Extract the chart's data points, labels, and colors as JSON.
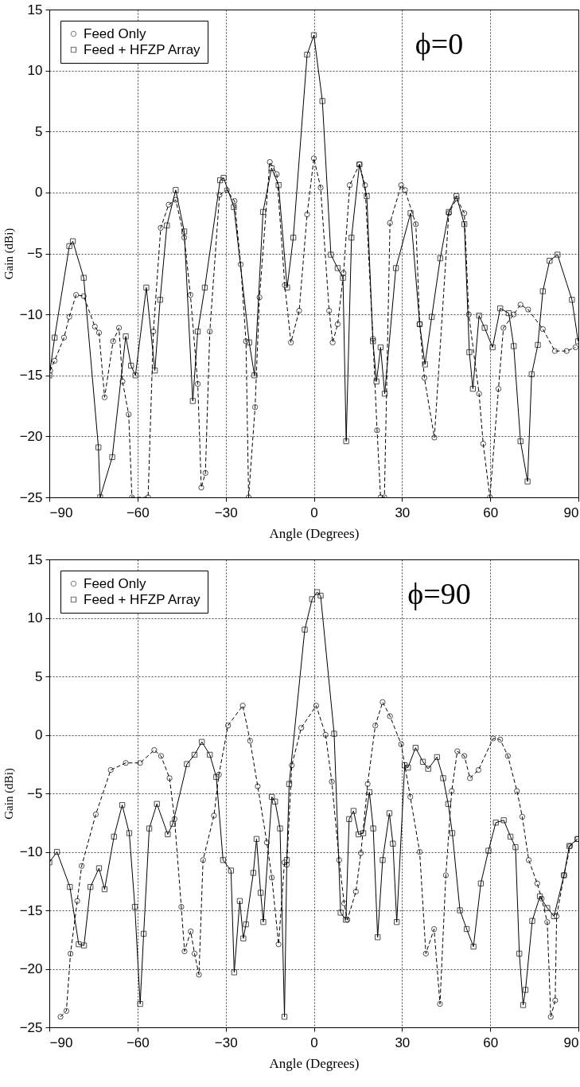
{
  "chart_data": [
    {
      "type": "line",
      "xlabel": "Angle (Degrees)",
      "ylabel": "Gain (dBi)",
      "xlim": [
        -90,
        90
      ],
      "ylim": [
        -25,
        15
      ],
      "xticks": [
        -90,
        -60,
        -30,
        0,
        30,
        60,
        90
      ],
      "yticks": [
        -25,
        -20,
        -15,
        -10,
        -5,
        0,
        5,
        10,
        15
      ],
      "grid": true,
      "legend": "top left",
      "annotations": [
        "ϕ=0"
      ],
      "series": [
        {
          "name": "Feed Only",
          "color": "#000000",
          "marker": "circle",
          "line_style": "dashed",
          "x": [
            -89.7,
            -88.2,
            -85,
            -83.2,
            -80.9,
            -78.3,
            -74.5,
            -73.1,
            -71.2,
            -68.3,
            -66.3,
            -65.1,
            -63,
            -61.9,
            -56.4,
            -54.6,
            -52.1,
            -49.4,
            -47,
            -44.1,
            -42,
            -39.5,
            -38.3,
            -36.9,
            -35.4,
            -32.1,
            -29.6,
            -27,
            -24.9,
            -23.1,
            -22.2,
            -20,
            -18.5,
            -15,
            -12.6,
            -9.9,
            -7.8,
            -5,
            -2.3,
            0,
            2.3,
            5.2,
            6.4,
            8.1,
            10.1,
            12.2,
            15.5,
            17.4,
            20.1,
            21.5,
            22.7,
            24,
            25.9,
            29.7,
            31,
            34.7,
            36,
            37.6,
            41,
            45.9,
            48.6,
            51.2,
            52.7,
            56.2,
            57.6,
            59.9,
            62.8,
            64.5,
            68,
            70.3,
            72.9,
            77.9,
            82,
            86,
            89
          ],
          "values": [
            -14.6,
            -13.8,
            -11.9,
            -10.2,
            -8.4,
            -8.5,
            -11,
            -11.5,
            -16.8,
            -12.2,
            -11.1,
            -15.5,
            -18.2,
            -25,
            -25,
            -11.4,
            -2.9,
            -1,
            -0.6,
            -3.7,
            -8.4,
            -15.7,
            -24.2,
            -23,
            -11.4,
            -0.2,
            0.2,
            -0.7,
            -5.9,
            -12.2,
            -25,
            -17.6,
            -8.6,
            2.5,
            1.5,
            -7.6,
            -12.3,
            -9.7,
            -1.8,
            2.8,
            0.4,
            -9.7,
            -12.3,
            -10.8,
            -6.6,
            0.6,
            2.3,
            0.6,
            -12,
            -19.5,
            -25,
            -25,
            -2.5,
            0.6,
            0.2,
            -2.6,
            -10.8,
            -15.2,
            -20.1,
            -1.7,
            -0.5,
            -1.7,
            -10,
            -16.5,
            -20.6,
            -25,
            -16.1,
            -11.1,
            -10,
            -9.2,
            -9.6,
            -11.2,
            -13,
            -13,
            -12.7
          ]
        },
        {
          "name": "Feed + HFZP Array",
          "color": "#000000",
          "marker": "square",
          "line_style": "solid",
          "x": [
            -90,
            -88.2,
            -83.2,
            -82,
            -78.3,
            -73.3,
            -72.7,
            -68.6,
            -64,
            -62.2,
            -60.7,
            -57,
            -54.1,
            -52.3,
            -50,
            -47,
            -44.1,
            -41.2,
            -39.5,
            -37.1,
            -31.9,
            -30.7,
            -27.2,
            -22,
            -20.2,
            -17.3,
            -14.4,
            -12,
            -9.1,
            -7,
            -2.3,
            0,
            2.9,
            5.8,
            8.1,
            9.9,
            11,
            12.8,
            15.5,
            18,
            20.1,
            21.3,
            22.7,
            24.1,
            27.9,
            32.9,
            36,
            37.8,
            40.1,
            43,
            45.9,
            48.5,
            51.2,
            52.9,
            54.1,
            56.2,
            58.1,
            60.8,
            63.4,
            66.3,
            68,
            70.3,
            72.7,
            74.1,
            76.2,
            77.9,
            80.2,
            82.9,
            87.8,
            89.9
          ],
          "values": [
            -15,
            -11.9,
            -4.4,
            -4,
            -7,
            -20.9,
            -25,
            -21.7,
            -11.8,
            -14.2,
            -15,
            -7.8,
            -14.6,
            -8.8,
            -2.7,
            0.2,
            -3.2,
            -17.1,
            -11.4,
            -7.8,
            1,
            1.2,
            -1.2,
            -12.3,
            -15,
            -1.6,
            2,
            0.6,
            -7.8,
            -3.7,
            11.3,
            12.9,
            7.5,
            -5.1,
            -6.2,
            -7,
            -20.4,
            -3.7,
            2.3,
            -0.3,
            -12.2,
            -15.5,
            -12.7,
            -16.5,
            -6.2,
            -1.7,
            -10.8,
            -14.1,
            -10.2,
            -5.4,
            -1.6,
            -0.3,
            -2.6,
            -13.1,
            -16.1,
            -10.1,
            -11.1,
            -12.7,
            -9.5,
            -9.9,
            -12.6,
            -20.4,
            -23.7,
            -14.9,
            -12.5,
            -8.1,
            -5.6,
            -5.1,
            -8.8,
            -12.2
          ]
        }
      ]
    },
    {
      "type": "line",
      "xlabel": "Angle (Degrees)",
      "ylabel": "Gain (dBi)",
      "xlim": [
        -90,
        90
      ],
      "ylim": [
        -25,
        15
      ],
      "xticks": [
        -90,
        -60,
        -30,
        0,
        30,
        60,
        90
      ],
      "yticks": [
        -25,
        -20,
        -15,
        -10,
        -5,
        0,
        5,
        10,
        15
      ],
      "grid": true,
      "legend": "top left",
      "annotations": [
        "ϕ=90"
      ],
      "series": [
        {
          "name": "Feed Only",
          "color": "#000000",
          "marker": "circle",
          "line_style": "dashed",
          "x": [
            -86.2,
            -84.2,
            -82.8,
            -80.5,
            -79,
            -74.2,
            -69.1,
            -64,
            -59.1,
            -54.3,
            -52,
            -49.1,
            -47.4,
            -45.1,
            -44,
            -41.9,
            -40.6,
            -39.1,
            -37.7,
            -34,
            -32.3,
            -29.2,
            -24.2,
            -21.7,
            -19.1,
            -16,
            -14.3,
            -12,
            -10,
            -9.2,
            -7.5,
            -4.3,
            0.8,
            4,
            6.1,
            8.6,
            10.3,
            11.4,
            14.3,
            16,
            18.3,
            20.9,
            23.4,
            25.9,
            29.7,
            32.8,
            36,
            38.1,
            40.9,
            42.9,
            44.9,
            46.9,
            48.8,
            51.2,
            53.1,
            56,
            61,
            63.4,
            66,
            69.1,
            70.9,
            73.1,
            76,
            77.5,
            79.4,
            80.6,
            82.1,
            82.6,
            85.1,
            87.2,
            89.7
          ],
          "values": [
            -24.1,
            -23.6,
            -18.7,
            -14.2,
            -11.2,
            -6.8,
            -3,
            -2.4,
            -2.4,
            -1.3,
            -1.8,
            -3.7,
            -7.2,
            -14.7,
            -18.5,
            -16.8,
            -18.7,
            -20.5,
            -10.7,
            -6.9,
            -3.4,
            0.8,
            2.5,
            -0.5,
            -4.4,
            -9.2,
            -12.2,
            -17.9,
            -10.9,
            -11.1,
            -2.6,
            0.6,
            2.5,
            0,
            -4,
            -10.7,
            -14.4,
            -15.8,
            -13.4,
            -10.1,
            -4.2,
            0.8,
            2.8,
            1.6,
            -0.8,
            -5.3,
            -10,
            -18.7,
            -16.6,
            -23,
            -12,
            -4.8,
            -1.4,
            -1.8,
            -3.7,
            -3,
            -0.3,
            -0.4,
            -1.8,
            -4.8,
            -7,
            -10.7,
            -12.7,
            -14,
            -16,
            -24.1,
            -22.7,
            -15.5,
            -12,
            -9.5,
            -8.9
          ]
        },
        {
          "name": "Feed + HFZP Array",
          "color": "#000000",
          "marker": "square",
          "line_style": "solid",
          "x": [
            -90,
            -87.4,
            -83,
            -80,
            -78.2,
            -76,
            -73.1,
            -71.2,
            -68,
            -65.2,
            -62.8,
            -60.9,
            -59.1,
            -57.9,
            -56,
            -53.4,
            -49.7,
            -48,
            -43.2,
            -40.6,
            -38.1,
            -35.4,
            -33.2,
            -30.9,
            -28.2,
            -27.1,
            -25.2,
            -24,
            -23.1,
            -20.6,
            -19.5,
            -18.1,
            -17.2,
            -14.3,
            -13.2,
            -11.5,
            -10,
            -9.2,
            -8.4,
            -3.1,
            -0.6,
            1.1,
            2.3,
            6.9,
            9.1,
            10.9,
            12,
            13.5,
            15.2,
            16.8,
            18.9,
            20.2,
            21.7,
            23.4,
            25.7,
            26.9,
            28.2,
            30.9,
            32,
            34.6,
            37.1,
            38.9,
            41.9,
            44,
            45.7,
            47.1,
            49.7,
            52,
            54.3,
            56.8,
            59.4,
            61.9,
            64.6,
            66.9,
            68.6,
            69.9,
            71.2,
            72,
            74.3,
            76.9,
            79.4,
            81.7,
            85.1,
            86.9,
            89.7
          ],
          "values": [
            -10.9,
            -10,
            -13,
            -17.9,
            -18,
            -13,
            -11.4,
            -13.2,
            -8.7,
            -6,
            -8.4,
            -14.7,
            -23,
            -17,
            -8,
            -5.9,
            -8.5,
            -7.6,
            -2.5,
            -1.7,
            -0.6,
            -1.7,
            -3.6,
            -10.7,
            -11.6,
            -20.3,
            -14.2,
            -17.4,
            -16.2,
            -11.8,
            -8.9,
            -13.5,
            -16,
            -5.3,
            -5.7,
            -8,
            -24.1,
            -10.7,
            -4.2,
            9,
            11.6,
            12.2,
            11.9,
            0.1,
            -15.2,
            -15.8,
            -7.2,
            -6.5,
            -8.5,
            -8.4,
            -4.9,
            -8,
            -17.3,
            -10.7,
            -6.7,
            -9.3,
            -16,
            -2.6,
            -2.8,
            -1.1,
            -2.3,
            -2.9,
            -1.9,
            -3.7,
            -5.9,
            -8.4,
            -15,
            -16.6,
            -18.1,
            -12.7,
            -9.9,
            -7.5,
            -7.3,
            -8.7,
            -9.6,
            -18.7,
            -23.1,
            -21.8,
            -15.9,
            -13.8,
            -14.8,
            -15.5,
            -12,
            -9.5,
            -8.9
          ]
        }
      ]
    }
  ]
}
